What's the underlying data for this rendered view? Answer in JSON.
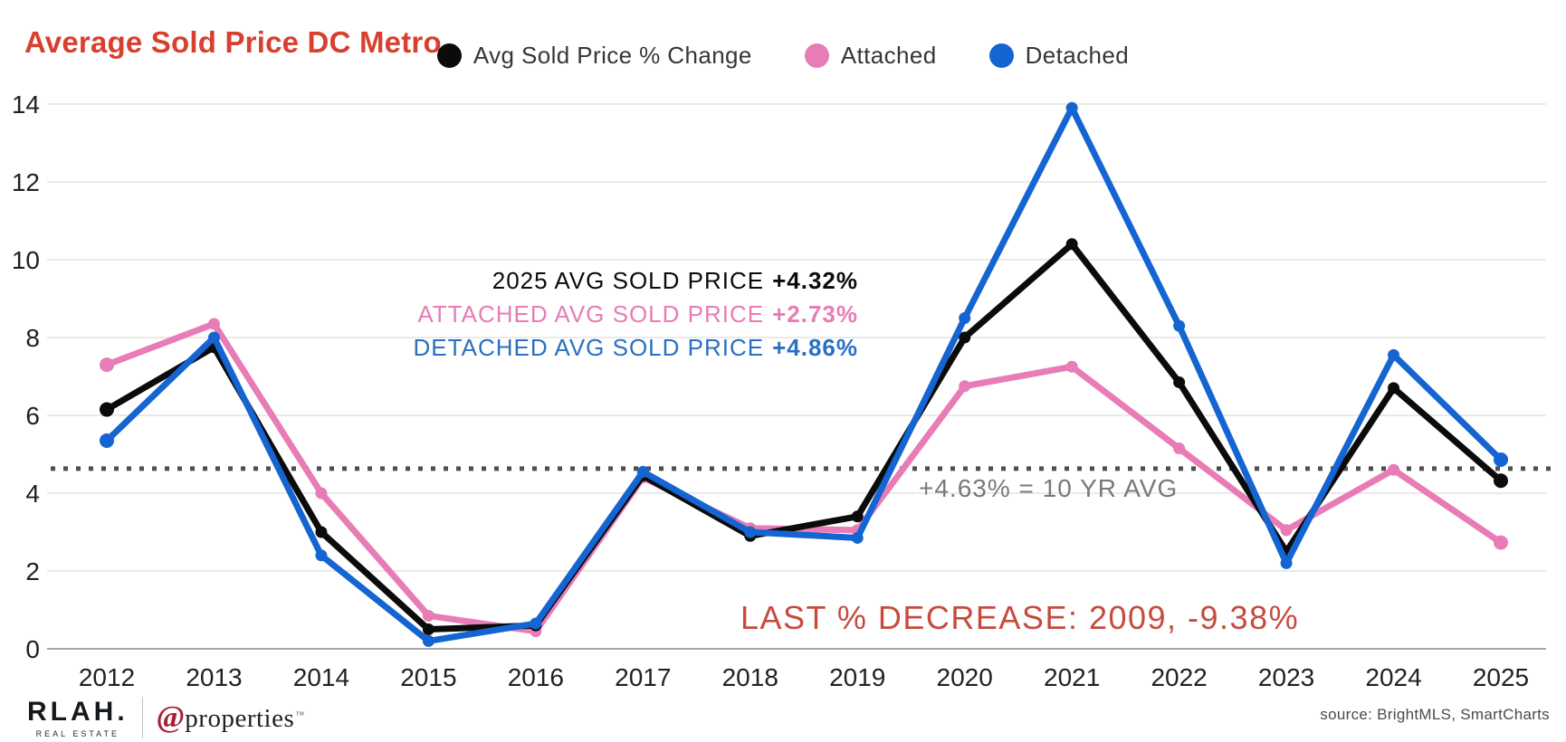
{
  "title": "Average Sold Price DC Metro",
  "legend": [
    {
      "label": "Avg Sold Price % Change",
      "color": "#0b0b0b"
    },
    {
      "label": "Attached",
      "color": "#e87cb6"
    },
    {
      "label": "Detached",
      "color": "#1464d2"
    }
  ],
  "annotations": {
    "lines": [
      {
        "label": "2025 AVG SOLD PRICE",
        "value": "+4.32%",
        "color": "#0b0b0b"
      },
      {
        "label": "ATTACHED AVG SOLD PRICE",
        "value": "+2.73%",
        "color": "#e87cb6"
      },
      {
        "label": "DETACHED AVG SOLD PRICE",
        "value": "+4.86%",
        "color": "#2a6fc2"
      }
    ],
    "ten_year_avg": "+4.63% = 10 YR AVG",
    "decrease_note": "LAST % DECREASE: 2009, -9.38%"
  },
  "footer": {
    "logo_primary": "RLAH.",
    "logo_sub": "REAL ESTATE",
    "logo_at": "@",
    "logo_name": "properties",
    "logo_mark": "™",
    "source": "source: BrightMLS, SmartCharts"
  },
  "colors": {
    "title_red": "#d8402e",
    "note_red": "#c64b3e",
    "avg_label_gray": "#77797c",
    "grid_gray": "#e4e4e4",
    "axis_gray": "#a6a6a6",
    "reference_gray": "#4f4f4f",
    "brand_red": "#a31f34"
  },
  "chart_data": {
    "type": "line",
    "title": "Average Sold Price DC Metro",
    "x": [
      2012,
      2013,
      2014,
      2015,
      2016,
      2017,
      2018,
      2019,
      2020,
      2021,
      2022,
      2023,
      2024,
      2025
    ],
    "series": [
      {
        "name": "Avg Sold Price % Change",
        "color": "#0b0b0b",
        "values": [
          6.15,
          7.75,
          3.0,
          0.5,
          0.6,
          4.45,
          2.9,
          3.4,
          8.0,
          10.4,
          6.85,
          2.5,
          6.7,
          4.32
        ]
      },
      {
        "name": "Attached",
        "color": "#e87cb6",
        "values": [
          7.3,
          8.35,
          4.0,
          0.85,
          0.45,
          4.4,
          3.1,
          3.05,
          6.75,
          7.25,
          5.15,
          3.05,
          4.6,
          2.73
        ]
      },
      {
        "name": "Detached",
        "color": "#1464d2",
        "values": [
          5.35,
          8.0,
          2.4,
          0.2,
          0.65,
          4.55,
          3.0,
          2.85,
          8.5,
          13.9,
          8.3,
          2.2,
          7.55,
          4.86
        ]
      }
    ],
    "reference_line": {
      "value": 4.63,
      "label": "+4.63% = 10 YR AVG",
      "style": "dotted",
      "color": "#4f4f4f"
    },
    "ylim": [
      0,
      14
    ],
    "yticks": [
      0,
      2,
      4,
      6,
      8,
      10,
      12,
      14
    ],
    "xlabel": "",
    "ylabel": "",
    "grid": true,
    "legend_position": "top"
  }
}
